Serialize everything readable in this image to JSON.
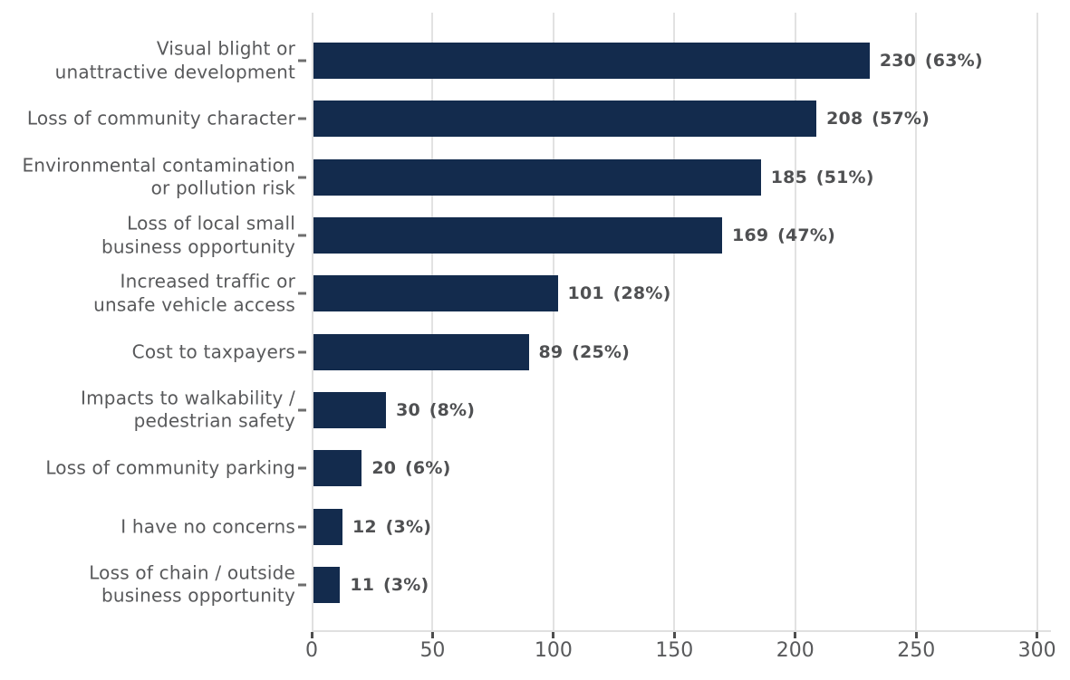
{
  "chart_data": {
    "type": "bar",
    "orientation": "horizontal",
    "title": "",
    "xlabel": "",
    "ylabel": "",
    "categories": [
      "Visual blight or unattractive development",
      "Loss of community character",
      "Environmental contamination or pollution risk",
      "Loss of local small business opportunity",
      "Increased traffic or unsafe vehicle access",
      "Cost to taxpayers",
      "Impacts to walkability / pedestrian safety",
      "Loss of community parking",
      "I have no concerns",
      "Loss of chain / outside business opportunity"
    ],
    "category_label_lines": [
      [
        "Visual blight or",
        "unattractive development"
      ],
      [
        "Loss of community character"
      ],
      [
        "Environmental contamination",
        "or pollution risk"
      ],
      [
        "Loss of local small",
        "business opportunity"
      ],
      [
        "Increased traffic or",
        "unsafe vehicle access"
      ],
      [
        "Cost to taxpayers"
      ],
      [
        "Impacts to walkability /",
        "pedestrian safety"
      ],
      [
        "Loss of community parking"
      ],
      [
        "I have no concerns"
      ],
      [
        "Loss of chain / outside",
        "business opportunity"
      ]
    ],
    "values": [
      230,
      208,
      185,
      169,
      101,
      89,
      30,
      20,
      12,
      11
    ],
    "percentages": [
      63,
      57,
      51,
      47,
      28,
      25,
      8,
      6,
      3,
      3
    ],
    "value_labels": [
      "230 (63%)",
      "208 (57%)",
      "185 (51%)",
      "169 (47%)",
      "101 (28%)",
      "89 (25%)",
      "30 (8%)",
      "20 (6%)",
      "12 (3%)",
      "11 (3%)"
    ],
    "x_ticks": [
      0,
      50,
      100,
      150,
      200,
      250,
      300
    ],
    "x_tick_labels": [
      "0",
      "50",
      "100",
      "150",
      "200",
      "250",
      "300"
    ],
    "xlim": [
      0,
      305
    ],
    "grid": "vertical-gridlines",
    "legend": "none",
    "colors": {
      "bar": "#132b4d",
      "category_label": "#58595b",
      "value_label": "#4f5052",
      "tick_label": "#58595b",
      "gridline": "#e2e2e2",
      "axis_line": "#e0e0e0",
      "tick_mark": "#4d4d4d"
    }
  }
}
